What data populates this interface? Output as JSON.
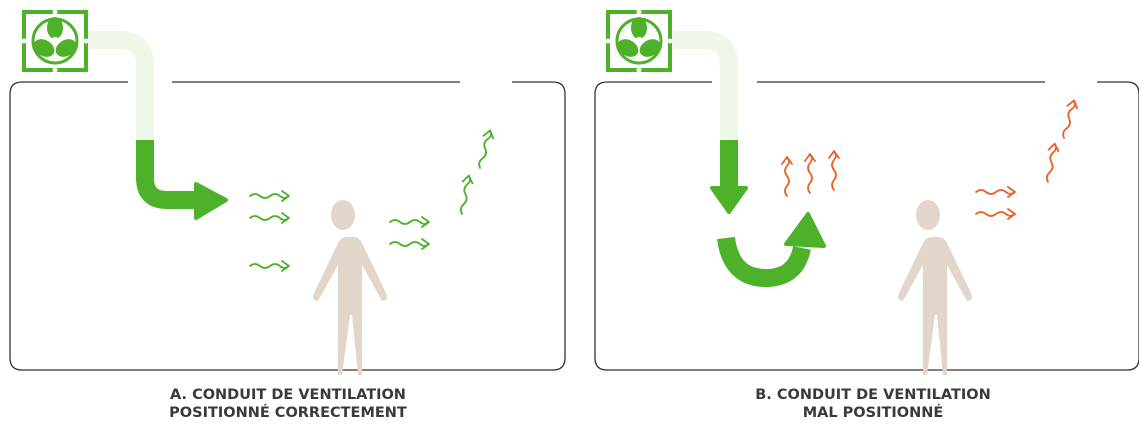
{
  "panels": [
    {
      "caption_lines": [
        "A. CONDUIT DE VENTILATION",
        "POSITIONNÉ CORRECTEMENT"
      ]
    },
    {
      "caption_lines": [
        "B. CONDUIT DE VENTILATION",
        "MAL POSITIONNÉ"
      ]
    }
  ]
}
